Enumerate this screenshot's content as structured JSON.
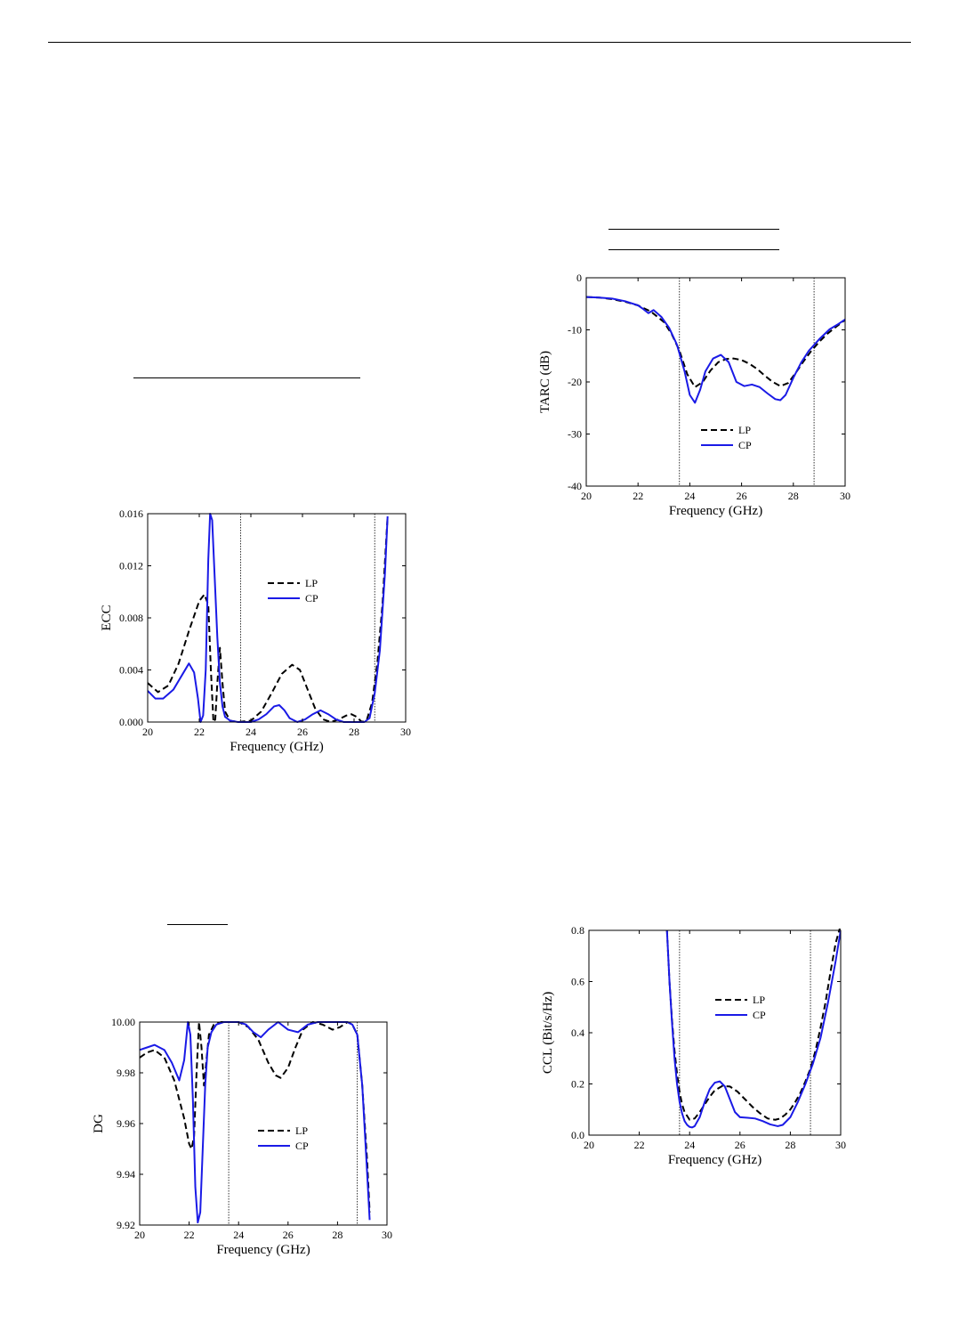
{
  "chart_data": [
    {
      "id": "ecc",
      "type": "line",
      "xlabel": "Frequency (GHz)",
      "ylabel": "ECC",
      "xlim": [
        20,
        30
      ],
      "ylim": [
        0,
        0.016
      ],
      "xticks": [
        20,
        22,
        24,
        26,
        28,
        30
      ],
      "yticks": [
        0.0,
        0.004,
        0.008,
        0.012,
        0.016
      ],
      "ytick_labels": [
        "0.000",
        "0.004",
        "0.008",
        "0.012",
        "0.016"
      ],
      "vlines": [
        23.6,
        28.8
      ],
      "legend": "top-right",
      "series": [
        {
          "name": "LP",
          "color": "#000000",
          "dash": true,
          "x": [
            20,
            20.4,
            20.8,
            21.2,
            21.6,
            22.0,
            22.2,
            22.35,
            22.45,
            22.55,
            22.62,
            22.7,
            22.8,
            22.9,
            23.0,
            23.2,
            23.5,
            24.0,
            24.4,
            24.8,
            25.2,
            25.6,
            25.9,
            26.2,
            26.5,
            26.8,
            27.1,
            27.4,
            27.7,
            27.9,
            28.1,
            28.3,
            28.5,
            28.7,
            28.9,
            29.1,
            29.3
          ],
          "y": [
            0.003,
            0.0023,
            0.0028,
            0.0045,
            0.007,
            0.0093,
            0.0098,
            0.009,
            0.004,
            0.0,
            0.0002,
            0.003,
            0.0057,
            0.003,
            0.0008,
            0.0001,
            0.0,
            0.0001,
            0.0008,
            0.0022,
            0.0037,
            0.0044,
            0.004,
            0.0025,
            0.001,
            0.0002,
            0.0,
            0.0002,
            0.0005,
            0.0006,
            0.0004,
            0.0,
            0.0002,
            0.0015,
            0.0045,
            0.009,
            0.0158
          ]
        },
        {
          "name": "CP",
          "color": "#1a1ae6",
          "dash": false,
          "x": [
            20,
            20.3,
            20.6,
            21.0,
            21.3,
            21.6,
            21.8,
            21.95,
            22.05,
            22.15,
            22.25,
            22.35,
            22.42,
            22.5,
            22.6,
            22.7,
            22.8,
            22.9,
            23.0,
            23.2,
            23.5,
            24.0,
            24.3,
            24.6,
            24.9,
            25.1,
            25.3,
            25.5,
            25.8,
            26.1,
            26.4,
            26.7,
            27.0,
            27.3,
            27.6,
            27.9,
            28.2,
            28.4,
            28.6,
            28.8,
            29.0,
            29.2,
            29.3
          ],
          "y": [
            0.0024,
            0.0018,
            0.0018,
            0.0025,
            0.0035,
            0.0045,
            0.0038,
            0.0018,
            0.0,
            0.0005,
            0.004,
            0.0125,
            0.016,
            0.0155,
            0.011,
            0.0065,
            0.003,
            0.0012,
            0.0004,
            0.0001,
            0.0,
            0.0,
            0.0002,
            0.0006,
            0.0012,
            0.0013,
            0.0009,
            0.0003,
            0.0,
            0.0002,
            0.0006,
            0.0009,
            0.0006,
            0.0002,
            0.0,
            0.0,
            0.0,
            0.0,
            0.0003,
            0.0022,
            0.0055,
            0.0115,
            0.0158
          ]
        }
      ]
    },
    {
      "id": "tarc",
      "type": "line",
      "xlabel": "Frequency (GHz)",
      "ylabel": "TARC (dB)",
      "xlim": [
        20,
        30
      ],
      "ylim": [
        -40,
        0
      ],
      "xticks": [
        20,
        22,
        24,
        26,
        28,
        30
      ],
      "yticks": [
        0,
        -10,
        -20,
        -30,
        -40
      ],
      "ytick_labels": [
        "0",
        "-10",
        "-20",
        "-30",
        "-40"
      ],
      "vlines": [
        23.6,
        28.8
      ],
      "legend": "center",
      "series": [
        {
          "name": "LP",
          "color": "#000000",
          "dash": true,
          "x": [
            20,
            20.5,
            21.0,
            21.5,
            22.0,
            22.5,
            23.0,
            23.3,
            23.6,
            23.9,
            24.2,
            24.5,
            24.8,
            25.1,
            25.4,
            25.7,
            26.0,
            26.3,
            26.6,
            26.9,
            27.2,
            27.5,
            27.8,
            28.1,
            28.4,
            28.7,
            29.0,
            29.3,
            29.6,
            30.0
          ],
          "y": [
            -3.7,
            -3.8,
            -4.1,
            -4.6,
            -5.3,
            -6.5,
            -8.5,
            -10.8,
            -14.0,
            -18.5,
            -21.0,
            -20.0,
            -17.8,
            -16.2,
            -15.6,
            -15.5,
            -15.8,
            -16.5,
            -17.5,
            -18.8,
            -20.0,
            -20.8,
            -20.2,
            -18.2,
            -16.0,
            -14.0,
            -12.3,
            -10.8,
            -9.6,
            -8.1
          ]
        },
        {
          "name": "CP",
          "color": "#1a1ae6",
          "dash": false,
          "x": [
            20,
            20.5,
            21.0,
            21.5,
            22.0,
            22.2,
            22.4,
            22.6,
            22.9,
            23.2,
            23.5,
            23.8,
            24.0,
            24.2,
            24.4,
            24.6,
            24.9,
            25.2,
            25.5,
            25.8,
            26.1,
            26.4,
            26.7,
            27.0,
            27.3,
            27.5,
            27.7,
            28.0,
            28.3,
            28.6,
            29.0,
            29.4,
            29.7,
            30.0
          ],
          "y": [
            -3.7,
            -3.8,
            -4.0,
            -4.5,
            -5.3,
            -6.0,
            -6.8,
            -6.2,
            -7.5,
            -9.6,
            -12.8,
            -18.0,
            -22.5,
            -24.0,
            -21.5,
            -18.0,
            -15.5,
            -14.8,
            -16.2,
            -20.0,
            -20.8,
            -20.5,
            -21.0,
            -22.2,
            -23.3,
            -23.5,
            -22.5,
            -19.2,
            -16.3,
            -14.0,
            -11.8,
            -9.9,
            -9.0,
            -8.0
          ]
        }
      ]
    },
    {
      "id": "dg",
      "type": "line",
      "xlabel": "Frequency (GHz)",
      "ylabel": "DG",
      "xlim": [
        20,
        30
      ],
      "ylim": [
        9.92,
        10.0
      ],
      "xticks": [
        20,
        22,
        24,
        26,
        28,
        30
      ],
      "yticks": [
        9.92,
        9.94,
        9.96,
        9.98,
        10.0
      ],
      "ytick_labels": [
        "9.92",
        "9.94",
        "9.96",
        "9.98",
        "10.00"
      ],
      "vlines": [
        23.6,
        28.8
      ],
      "legend": "bottom-right",
      "series": [
        {
          "name": "LP",
          "color": "#000000",
          "dash": true,
          "x": [
            20,
            20.3,
            20.6,
            21.0,
            21.4,
            21.8,
            22.0,
            22.1,
            22.2,
            22.3,
            22.4,
            22.5,
            22.6,
            22.7,
            22.8,
            23.0,
            23.3,
            23.6,
            24.0,
            24.4,
            24.8,
            25.2,
            25.5,
            25.7,
            26.0,
            26.3,
            26.6,
            27.0,
            27.4,
            27.8,
            28.1,
            28.4,
            28.6,
            28.8,
            29.0,
            29.2,
            29.3
          ],
          "y": [
            9.986,
            9.988,
            9.989,
            9.986,
            9.977,
            9.962,
            9.952,
            9.95,
            9.955,
            9.98,
            10.0,
            9.99,
            9.975,
            9.985,
            9.995,
            9.999,
            10.0,
            10.0,
            10.0,
            9.998,
            9.993,
            9.984,
            9.979,
            9.978,
            9.982,
            9.99,
            9.997,
            10.0,
            9.999,
            9.997,
            9.998,
            10.0,
            9.999,
            9.995,
            9.975,
            9.945,
            9.925
          ]
        },
        {
          "name": "CP",
          "color": "#1a1ae6",
          "dash": false,
          "x": [
            20,
            20.3,
            20.6,
            21.0,
            21.3,
            21.6,
            21.8,
            21.95,
            22.05,
            22.15,
            22.25,
            22.35,
            22.45,
            22.55,
            22.65,
            22.75,
            22.9,
            23.1,
            23.4,
            23.7,
            24.0,
            24.3,
            24.6,
            24.9,
            25.2,
            25.6,
            26.0,
            26.4,
            26.8,
            27.2,
            27.6,
            28.0,
            28.4,
            28.6,
            28.8,
            29.0,
            29.2,
            29.3
          ],
          "y": [
            9.989,
            9.99,
            9.991,
            9.989,
            9.984,
            9.977,
            9.985,
            10.0,
            9.995,
            9.97,
            9.935,
            9.921,
            9.925,
            9.95,
            9.975,
            9.99,
            9.996,
            9.999,
            10.0,
            10.0,
            10.0,
            9.999,
            9.996,
            9.994,
            9.997,
            10.0,
            9.997,
            9.996,
            9.999,
            10.0,
            10.0,
            10.0,
            10.0,
            9.999,
            9.995,
            9.975,
            9.94,
            9.922
          ]
        }
      ]
    },
    {
      "id": "ccl",
      "type": "line",
      "xlabel": "Frequency (GHz)",
      "ylabel": "CCL (Bit/s/Hz)",
      "xlim": [
        20,
        30
      ],
      "ylim": [
        0,
        0.8
      ],
      "xticks": [
        20,
        22,
        24,
        26,
        28,
        30
      ],
      "yticks": [
        0.0,
        0.2,
        0.4,
        0.6,
        0.8
      ],
      "ytick_labels": [
        "0.0",
        "0.2",
        "0.4",
        "0.6",
        "0.8"
      ],
      "vlines": [
        23.6,
        28.8
      ],
      "legend": "top-center",
      "series": [
        {
          "name": "LP",
          "color": "#000000",
          "dash": true,
          "x": [
            23.1,
            23.2,
            23.3,
            23.4,
            23.5,
            23.6,
            23.7,
            23.8,
            24.0,
            24.2,
            24.4,
            24.6,
            24.8,
            25.0,
            25.3,
            25.6,
            25.9,
            26.2,
            26.5,
            26.8,
            27.1,
            27.4,
            27.6,
            27.8,
            28.0,
            28.2,
            28.4,
            28.6,
            28.8,
            29.0,
            29.2,
            29.4,
            29.6,
            29.8,
            30.0
          ],
          "y": [
            0.8,
            0.6,
            0.45,
            0.33,
            0.24,
            0.17,
            0.12,
            0.09,
            0.06,
            0.065,
            0.09,
            0.12,
            0.15,
            0.175,
            0.192,
            0.19,
            0.17,
            0.14,
            0.11,
            0.085,
            0.065,
            0.06,
            0.065,
            0.08,
            0.1,
            0.13,
            0.165,
            0.21,
            0.26,
            0.33,
            0.42,
            0.52,
            0.64,
            0.75,
            0.82
          ]
        },
        {
          "name": "CP",
          "color": "#1a1ae6",
          "dash": false,
          "x": [
            23.1,
            23.2,
            23.3,
            23.4,
            23.5,
            23.6,
            23.7,
            23.8,
            23.9,
            24.0,
            24.1,
            24.2,
            24.4,
            24.6,
            24.8,
            25.0,
            25.2,
            25.4,
            25.6,
            25.8,
            26.0,
            26.3,
            26.6,
            26.9,
            27.2,
            27.5,
            27.7,
            28.0,
            28.3,
            28.6,
            28.9,
            29.2,
            29.5,
            29.8,
            30.0
          ],
          "y": [
            0.8,
            0.6,
            0.44,
            0.3,
            0.2,
            0.13,
            0.085,
            0.055,
            0.04,
            0.032,
            0.03,
            0.035,
            0.07,
            0.13,
            0.18,
            0.205,
            0.21,
            0.19,
            0.14,
            0.09,
            0.07,
            0.068,
            0.065,
            0.055,
            0.042,
            0.035,
            0.04,
            0.07,
            0.13,
            0.2,
            0.28,
            0.38,
            0.52,
            0.68,
            0.8
          ]
        }
      ]
    }
  ]
}
